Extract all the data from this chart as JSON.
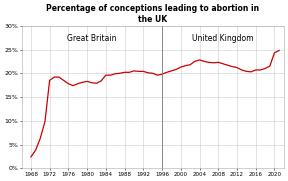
{
  "title": "Percentage of conceptions leading to abortion in\nthe UK",
  "gb_label": "Great Britain",
  "uk_label": "United Kingdom",
  "divider_year": 1996,
  "ylim": [
    0,
    0.3
  ],
  "yticks": [
    0,
    0.05,
    0.1,
    0.15,
    0.2,
    0.25,
    0.3
  ],
  "xticks": [
    1968,
    1972,
    1976,
    1980,
    1984,
    1988,
    1992,
    1996,
    2000,
    2004,
    2008,
    2012,
    2016,
    2020
  ],
  "line_color": "#cc0000",
  "divider_color": "#888888",
  "background_color": "#ffffff",
  "grid_color": "#cccccc",
  "title_bold": true,
  "data": {
    "years": [
      1968,
      1969,
      1970,
      1971,
      1972,
      1973,
      1974,
      1975,
      1976,
      1977,
      1978,
      1979,
      1980,
      1981,
      1982,
      1983,
      1984,
      1985,
      1986,
      1987,
      1988,
      1989,
      1990,
      1991,
      1992,
      1993,
      1994,
      1995,
      1996,
      1997,
      1998,
      1999,
      2000,
      2001,
      2002,
      2003,
      2004,
      2005,
      2006,
      2007,
      2008,
      2009,
      2010,
      2011,
      2012,
      2013,
      2014,
      2015,
      2016,
      2017,
      2018,
      2019,
      2020,
      2021
    ],
    "values": [
      0.024,
      0.038,
      0.063,
      0.098,
      0.185,
      0.192,
      0.192,
      0.185,
      0.178,
      0.174,
      0.178,
      0.181,
      0.183,
      0.18,
      0.179,
      0.184,
      0.196,
      0.196,
      0.199,
      0.2,
      0.202,
      0.202,
      0.205,
      0.204,
      0.204,
      0.201,
      0.2,
      0.196,
      0.198,
      0.202,
      0.205,
      0.208,
      0.213,
      0.216,
      0.218,
      0.225,
      0.228,
      0.225,
      0.223,
      0.222,
      0.223,
      0.22,
      0.217,
      0.214,
      0.212,
      0.207,
      0.204,
      0.203,
      0.207,
      0.207,
      0.21,
      0.215,
      0.243,
      0.248
    ]
  }
}
